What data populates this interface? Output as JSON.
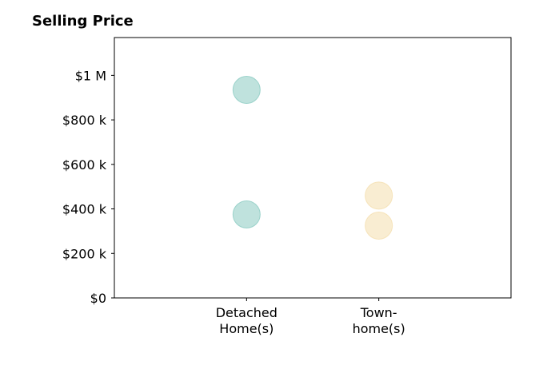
{
  "chart_data": {
    "type": "scatter",
    "title": "Selling Price",
    "xlabel": "",
    "ylabel": "",
    "categories": [
      "Detached\nHome(s)",
      "Town-\nhome(s)"
    ],
    "yticks": [
      {
        "value": 0,
        "label": "$0"
      },
      {
        "value": 200000,
        "label": "$200 k"
      },
      {
        "value": 400000,
        "label": "$400 k"
      },
      {
        "value": 600000,
        "label": "$600 k"
      },
      {
        "value": 800000,
        "label": "$800 k"
      },
      {
        "value": 1000000,
        "label": "$1 M"
      }
    ],
    "ylim": [
      0,
      1170000
    ],
    "xlim": [
      -1,
      2
    ],
    "grid": false,
    "series": [
      {
        "category": "Detached\nHome(s)",
        "values": [
          935000,
          375000
        ],
        "color": "#7fc6bc"
      },
      {
        "category": "Town-\nhome(s)",
        "values": [
          460000,
          325000
        ],
        "color": "#f3dca6"
      }
    ]
  }
}
